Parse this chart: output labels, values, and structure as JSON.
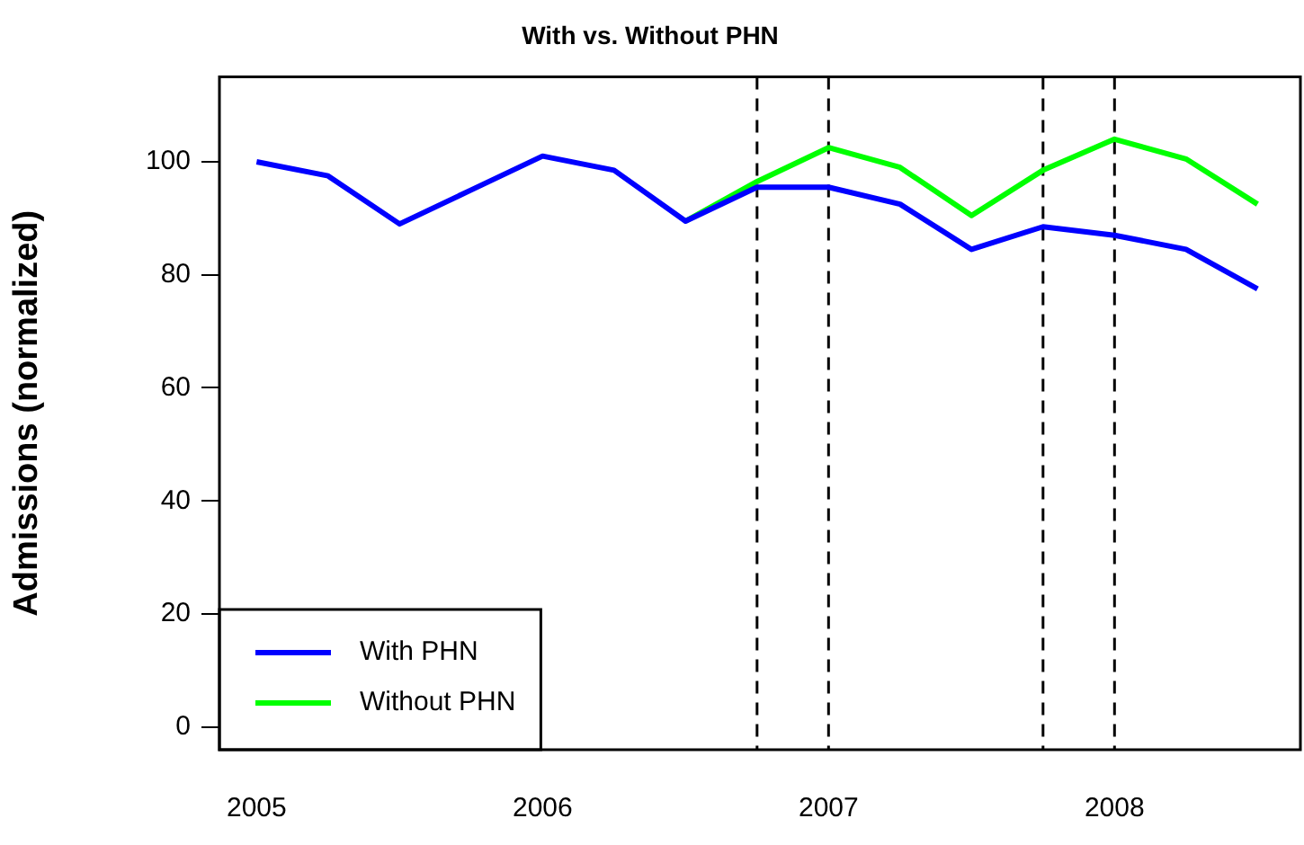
{
  "chart_data": {
    "type": "line",
    "title": "With vs. Without PHN",
    "ylabel": "Admissions (normalized)",
    "x": [
      2005,
      2005.25,
      2005.5,
      2005.75,
      2006,
      2006.25,
      2006.5,
      2006.75,
      2007,
      2007.25,
      2007.5,
      2007.75,
      2008,
      2008.25,
      2008.5
    ],
    "series": [
      {
        "name": "With PHN",
        "color": "#0000ff",
        "values": [
          100,
          97.5,
          89,
          95,
          101,
          98.5,
          89.5,
          95.5,
          95.5,
          92.5,
          84.5,
          88.5,
          87,
          84.5,
          77.5
        ]
      },
      {
        "name": "Without PHN",
        "color": "#00ff00",
        "values": [
          null,
          null,
          null,
          null,
          null,
          null,
          89.5,
          96.5,
          102.5,
          99,
          90.5,
          98.5,
          104,
          100.5,
          92.5
        ]
      }
    ],
    "xlim": [
      2004.87,
      2008.65
    ],
    "xticks": [
      2005,
      2006,
      2007,
      2008
    ],
    "ylim": [
      -4,
      115
    ],
    "yticks": [
      0,
      20,
      40,
      60,
      80,
      100
    ],
    "ref_lines": [
      {
        "axis": "x",
        "value": 2006.75,
        "color": "#000000",
        "line_style": "dashed"
      },
      {
        "axis": "x",
        "value": 2007,
        "color": "#000000",
        "line_style": "dashed"
      },
      {
        "axis": "x",
        "value": 2007.75,
        "color": "#000000",
        "line_style": "dashed"
      },
      {
        "axis": "x",
        "value": 2008,
        "color": "#000000",
        "line_style": "dashed"
      }
    ],
    "grid": false,
    "legend": "bottom left",
    "marker": "none",
    "line_style": "solid"
  }
}
